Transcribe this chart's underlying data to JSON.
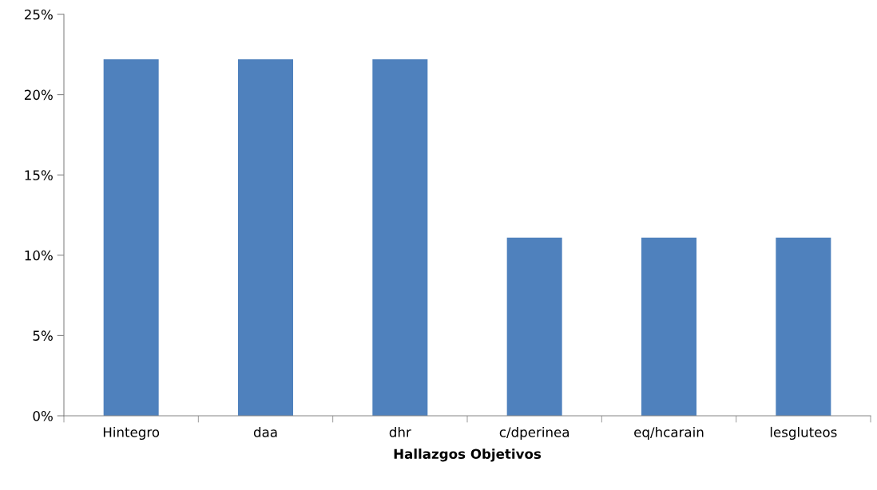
{
  "chart_data": {
    "type": "bar",
    "xlabel": "Hallazgos Objetivos",
    "categories": [
      "Hintegro",
      "daa",
      "dhr",
      "c/dperinea",
      "eq/hcarain",
      "lesgluteos"
    ],
    "values": [
      22.2,
      22.2,
      22.2,
      11.1,
      11.1,
      11.1
    ],
    "color": "#4f81bd",
    "ylim": [
      0,
      25
    ],
    "yticks": [
      {
        "value": 0,
        "label": "0%"
      },
      {
        "value": 5,
        "label": "5%"
      },
      {
        "value": 10,
        "label": "10%"
      },
      {
        "value": 15,
        "label": "15%"
      },
      {
        "value": 20,
        "label": "20%"
      },
      {
        "value": 25,
        "label": "25%"
      }
    ],
    "grid": false,
    "legend": false
  }
}
